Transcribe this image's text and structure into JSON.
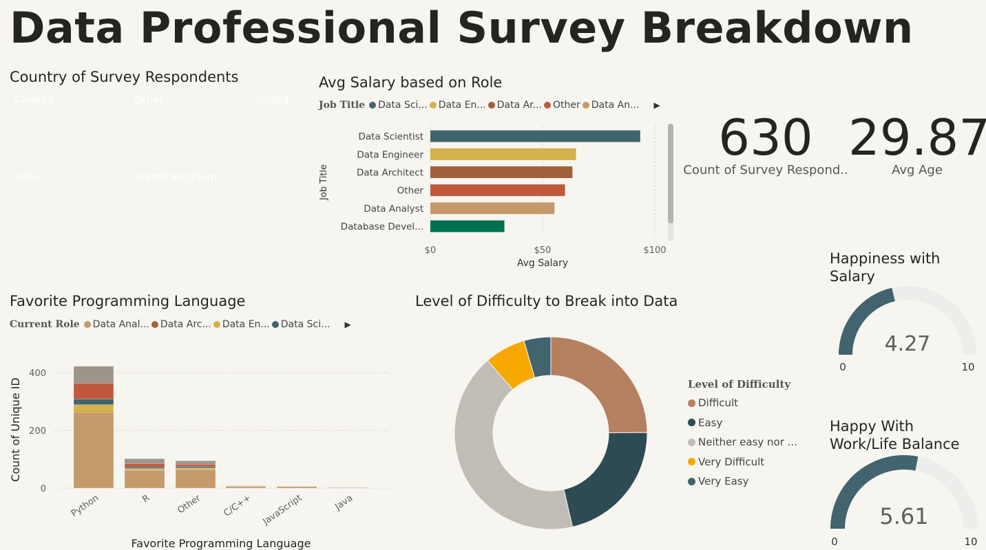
{
  "title": "Data Professional Survey Breakdown",
  "colors": {
    "teal": "#41646e",
    "gold": "#d4b14c",
    "brown": "#a0603a",
    "orange": "#c0593c",
    "tan": "#c49a6a",
    "green": "#03714f",
    "gray": "#9d958c"
  },
  "treemap": {
    "title": "Country of Survey Respondents",
    "tiles": [
      {
        "label": "Canada",
        "color": "#41646e"
      },
      {
        "label": "Other",
        "color": "#a0603a"
      },
      {
        "label": "United ...",
        "color": "#c49a6a"
      },
      {
        "label": "India",
        "color": "#d4b14c"
      },
      {
        "label": "United Kingdom",
        "color": "#c0593c"
      }
    ]
  },
  "salary_chart": {
    "title": "Avg Salary based on Role",
    "legend_title": "Job Title",
    "legend": [
      {
        "label": "Data Sci...",
        "color": "#41646e"
      },
      {
        "label": "Data En...",
        "color": "#d4b14c"
      },
      {
        "label": "Data Ar...",
        "color": "#a0603a"
      },
      {
        "label": "Other",
        "color": "#c0593c"
      },
      {
        "label": "Data An...",
        "color": "#c49a6a"
      }
    ],
    "ylabel": "Job Title",
    "xlabel": "Avg Salary",
    "xticks": [
      "$0",
      "$50",
      "$100"
    ]
  },
  "cards": [
    {
      "value": "630",
      "label": "Count of Survey Respond.."
    },
    {
      "value": "29.87",
      "label": "Avg Age"
    }
  ],
  "lang_chart": {
    "title": "Favorite Programming Language",
    "legend_title": "Current Role",
    "legend": [
      {
        "label": "Data Anal...",
        "color": "#c49a6a"
      },
      {
        "label": "Data Arc...",
        "color": "#a0603a"
      },
      {
        "label": "Data En...",
        "color": "#d4b14c"
      },
      {
        "label": "Data Sci...",
        "color": "#41646e"
      }
    ],
    "ylabel": "Count of Unique ID",
    "xlabel": "Favorite Programming Language",
    "yticks": [
      "0",
      "200",
      "400"
    ]
  },
  "difficulty": {
    "title": "Level of Difficulty to Break into Data",
    "legend_title": "Level of Difficulty",
    "items": [
      {
        "label": "Difficult",
        "color": "#b48060"
      },
      {
        "label": "Easy",
        "color": "#2e4b53"
      },
      {
        "label": "Neither easy nor ...",
        "color": "#c1bcb5"
      },
      {
        "label": "Very Difficult",
        "color": "#f6a700"
      },
      {
        "label": "Very Easy",
        "color": "#41646e"
      }
    ]
  },
  "gauges": [
    {
      "title_line1": "Happiness with",
      "title_line2": "Salary",
      "value": "4.27",
      "min": "0",
      "max": "10"
    },
    {
      "title_line1": "Happy With",
      "title_line2": "Work/Life Balance",
      "value": "5.61",
      "min": "0",
      "max": "10"
    }
  ],
  "chart_data": [
    {
      "type": "treemap",
      "title": "Country of Survey Respondents",
      "categories": [
        "Canada",
        "Other",
        "United ...",
        "India",
        "United Kingdom"
      ]
    },
    {
      "type": "bar",
      "orientation": "horizontal",
      "title": "Avg Salary based on Role",
      "xlabel": "Avg Salary",
      "ylabel": "Job Title",
      "categories": [
        "Data Scientist",
        "Data Engineer",
        "Data Architect",
        "Other",
        "Data Analyst",
        "Database Devel..."
      ],
      "values": [
        93.5,
        64.9,
        63.3,
        60.0,
        55.3,
        33.0
      ],
      "colors": [
        "#41646e",
        "#d4b14c",
        "#a0603a",
        "#c0593c",
        "#c49a6a",
        "#03714f"
      ],
      "xlim": [
        0,
        100
      ],
      "grid": true
    },
    {
      "type": "bar",
      "stacked": true,
      "title": "Favorite Programming Language",
      "xlabel": "Favorite Programming Language",
      "ylabel": "Count of Unique ID",
      "categories": [
        "Python",
        "R",
        "Other",
        "C/C++",
        "JavaScript",
        "Java"
      ],
      "ylim": [
        0,
        460
      ],
      "series": [
        {
          "name": "Data Anal...",
          "color": "#c49a6a",
          "values": [
            255,
            62,
            63,
            6,
            5,
            2
          ]
        },
        {
          "name": "Data Arc...",
          "color": "#a0603a",
          "values": [
            4,
            2,
            2,
            1,
            1,
            0
          ]
        },
        {
          "name": "Data En...",
          "color": "#d4b14c",
          "values": [
            30,
            4,
            5,
            0,
            0,
            0
          ]
        },
        {
          "name": "Data Sci...",
          "color": "#41646e",
          "values": [
            20,
            5,
            5,
            0,
            0,
            0
          ]
        },
        {
          "color": "#c0593c",
          "values": [
            55,
            12,
            8,
            1,
            0,
            0
          ]
        },
        {
          "color": "#9d958c",
          "values": [
            58,
            17,
            12,
            1,
            1,
            1
          ]
        }
      ]
    },
    {
      "type": "pie",
      "donut": true,
      "title": "Level of Difficulty to Break into Data",
      "categories": [
        "Difficult",
        "Easy",
        "Neither easy nor ...",
        "Very Difficult",
        "Very Easy"
      ],
      "values": [
        24.9,
        21.5,
        42.2,
        6.9,
        4.5
      ],
      "colors": [
        "#b48060",
        "#2e4b53",
        "#c1bcb5",
        "#f6a700",
        "#41646e"
      ],
      "legend": "right"
    },
    {
      "type": "gauge",
      "title": "Happiness with Salary",
      "value": 4.27,
      "min": 0,
      "max": 10
    },
    {
      "type": "gauge",
      "title": "Happy With Work/Life Balance",
      "value": 5.61,
      "min": 0,
      "max": 10
    }
  ]
}
